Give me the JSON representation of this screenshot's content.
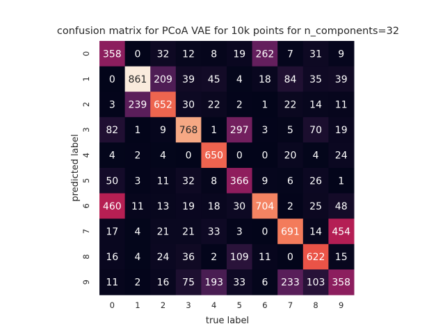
{
  "chart_data": {
    "type": "heatmap",
    "title": "confusion matrix for PCoA VAE for 10k points for n_components=32",
    "xlabel": "true label",
    "ylabel": "predicted label",
    "x_ticks": [
      "0",
      "1",
      "2",
      "3",
      "4",
      "5",
      "6",
      "7",
      "8",
      "9"
    ],
    "y_ticks": [
      "0",
      "1",
      "2",
      "3",
      "4",
      "5",
      "6",
      "7",
      "8",
      "9"
    ],
    "colormap": "rocket",
    "colorbar": false,
    "values": [
      [
        358,
        0,
        32,
        12,
        8,
        19,
        262,
        7,
        31,
        9
      ],
      [
        0,
        861,
        209,
        39,
        45,
        4,
        18,
        84,
        35,
        39
      ],
      [
        3,
        239,
        652,
        30,
        22,
        2,
        1,
        22,
        14,
        11
      ],
      [
        82,
        1,
        9,
        768,
        1,
        297,
        3,
        5,
        70,
        19
      ],
      [
        4,
        2,
        4,
        0,
        650,
        0,
        0,
        20,
        4,
        24
      ],
      [
        50,
        3,
        11,
        32,
        8,
        366,
        9,
        6,
        26,
        1
      ],
      [
        460,
        11,
        13,
        19,
        18,
        30,
        704,
        2,
        25,
        48
      ],
      [
        17,
        4,
        21,
        21,
        33,
        3,
        0,
        691,
        14,
        454
      ],
      [
        16,
        4,
        24,
        36,
        2,
        109,
        11,
        0,
        622,
        15
      ],
      [
        11,
        2,
        16,
        75,
        193,
        33,
        6,
        233,
        103,
        358
      ]
    ]
  }
}
